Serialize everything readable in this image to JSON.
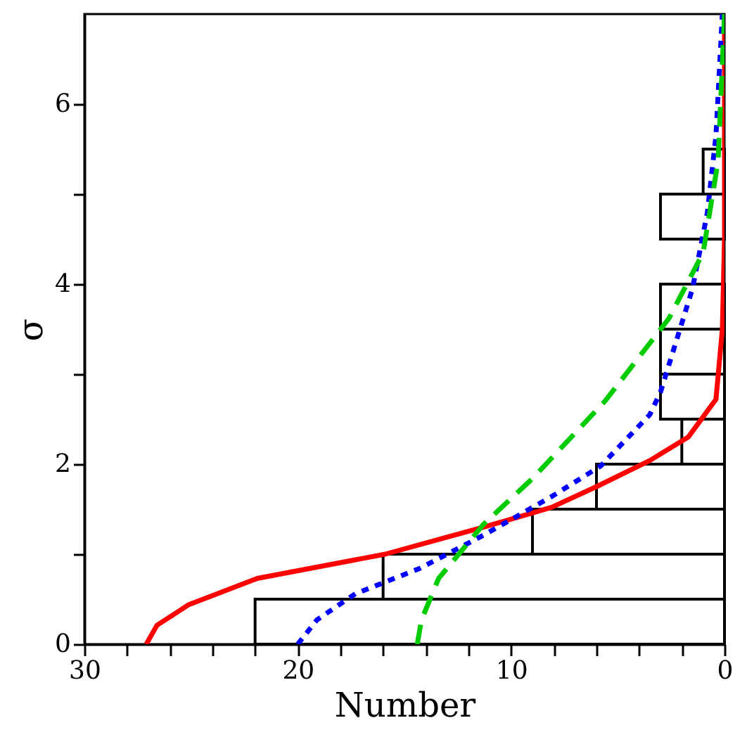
{
  "chart_data": {
    "type": "histogram",
    "orientation": "horizontal",
    "xlabel": "Number",
    "ylabel": "σ",
    "bins": [
      0,
      0.5,
      1,
      1.5,
      2,
      2.5,
      3,
      3.5,
      4,
      4.5,
      5,
      5.5
    ],
    "values": [
      22,
      16,
      9,
      6,
      2,
      3,
      3,
      3,
      0,
      3,
      1
    ],
    "color": "#ffffff",
    "series": [
      {
        "type": "line",
        "color": "#ff0000",
        "line_style": "solid",
        "x": [
          0,
          0.21,
          0.44,
          0.73,
          1.0,
          1.3,
          1.52,
          1.75,
          2.04,
          2.3,
          2.72,
          3.5,
          4.5,
          7
        ],
        "values": [
          27.1,
          26.6,
          25.1,
          21.9,
          15.9,
          11.3,
          8.1,
          6.0,
          3.5,
          1.7,
          0.4,
          0.1,
          0,
          0
        ]
      },
      {
        "type": "line",
        "color": "#0000ff",
        "line_style": "dotted",
        "x": [
          0,
          0.27,
          0.56,
          0.84,
          1.21,
          1.64,
          1.98,
          2.55,
          2.8,
          3.95,
          4.8,
          5.65,
          7
        ],
        "values": [
          20,
          19.1,
          17.3,
          14.3,
          11.3,
          8.1,
          5.8,
          3.5,
          3.0,
          1.5,
          0.8,
          0.4,
          0.1
        ]
      },
      {
        "type": "line",
        "color": "#00cc00",
        "line_style": "dashed",
        "x": [
          0,
          0.27,
          0.73,
          1.33,
          1.84,
          2.7,
          3.62,
          4.35,
          5.37,
          7
        ],
        "values": [
          14.4,
          14.2,
          13.4,
          11.3,
          9.0,
          5.6,
          2.6,
          1.0,
          0.3,
          0
        ]
      }
    ],
    "xlim": [
      30,
      0
    ],
    "xticks": [
      0,
      {
        "value": 2,
        "label": null
      },
      {
        "value": 4,
        "label": null
      },
      {
        "value": 6,
        "label": null
      },
      {
        "value": 8,
        "label": null
      },
      10,
      {
        "value": 12,
        "label": null
      },
      {
        "value": 14,
        "label": null
      },
      {
        "value": 16,
        "label": null
      },
      {
        "value": 18,
        "label": null
      },
      20,
      {
        "value": 22,
        "label": null
      },
      {
        "value": 24,
        "label": null
      },
      {
        "value": 26,
        "label": null
      },
      {
        "value": 28,
        "label": null
      },
      30
    ],
    "ylim": [
      0,
      7
    ],
    "yticks": [
      0,
      {
        "value": 1,
        "label": null
      },
      2,
      {
        "value": 3,
        "label": null
      },
      4,
      {
        "value": 5,
        "label": null
      },
      6
    ],
    "marker": "none",
    "grid": false,
    "legend": false
  }
}
